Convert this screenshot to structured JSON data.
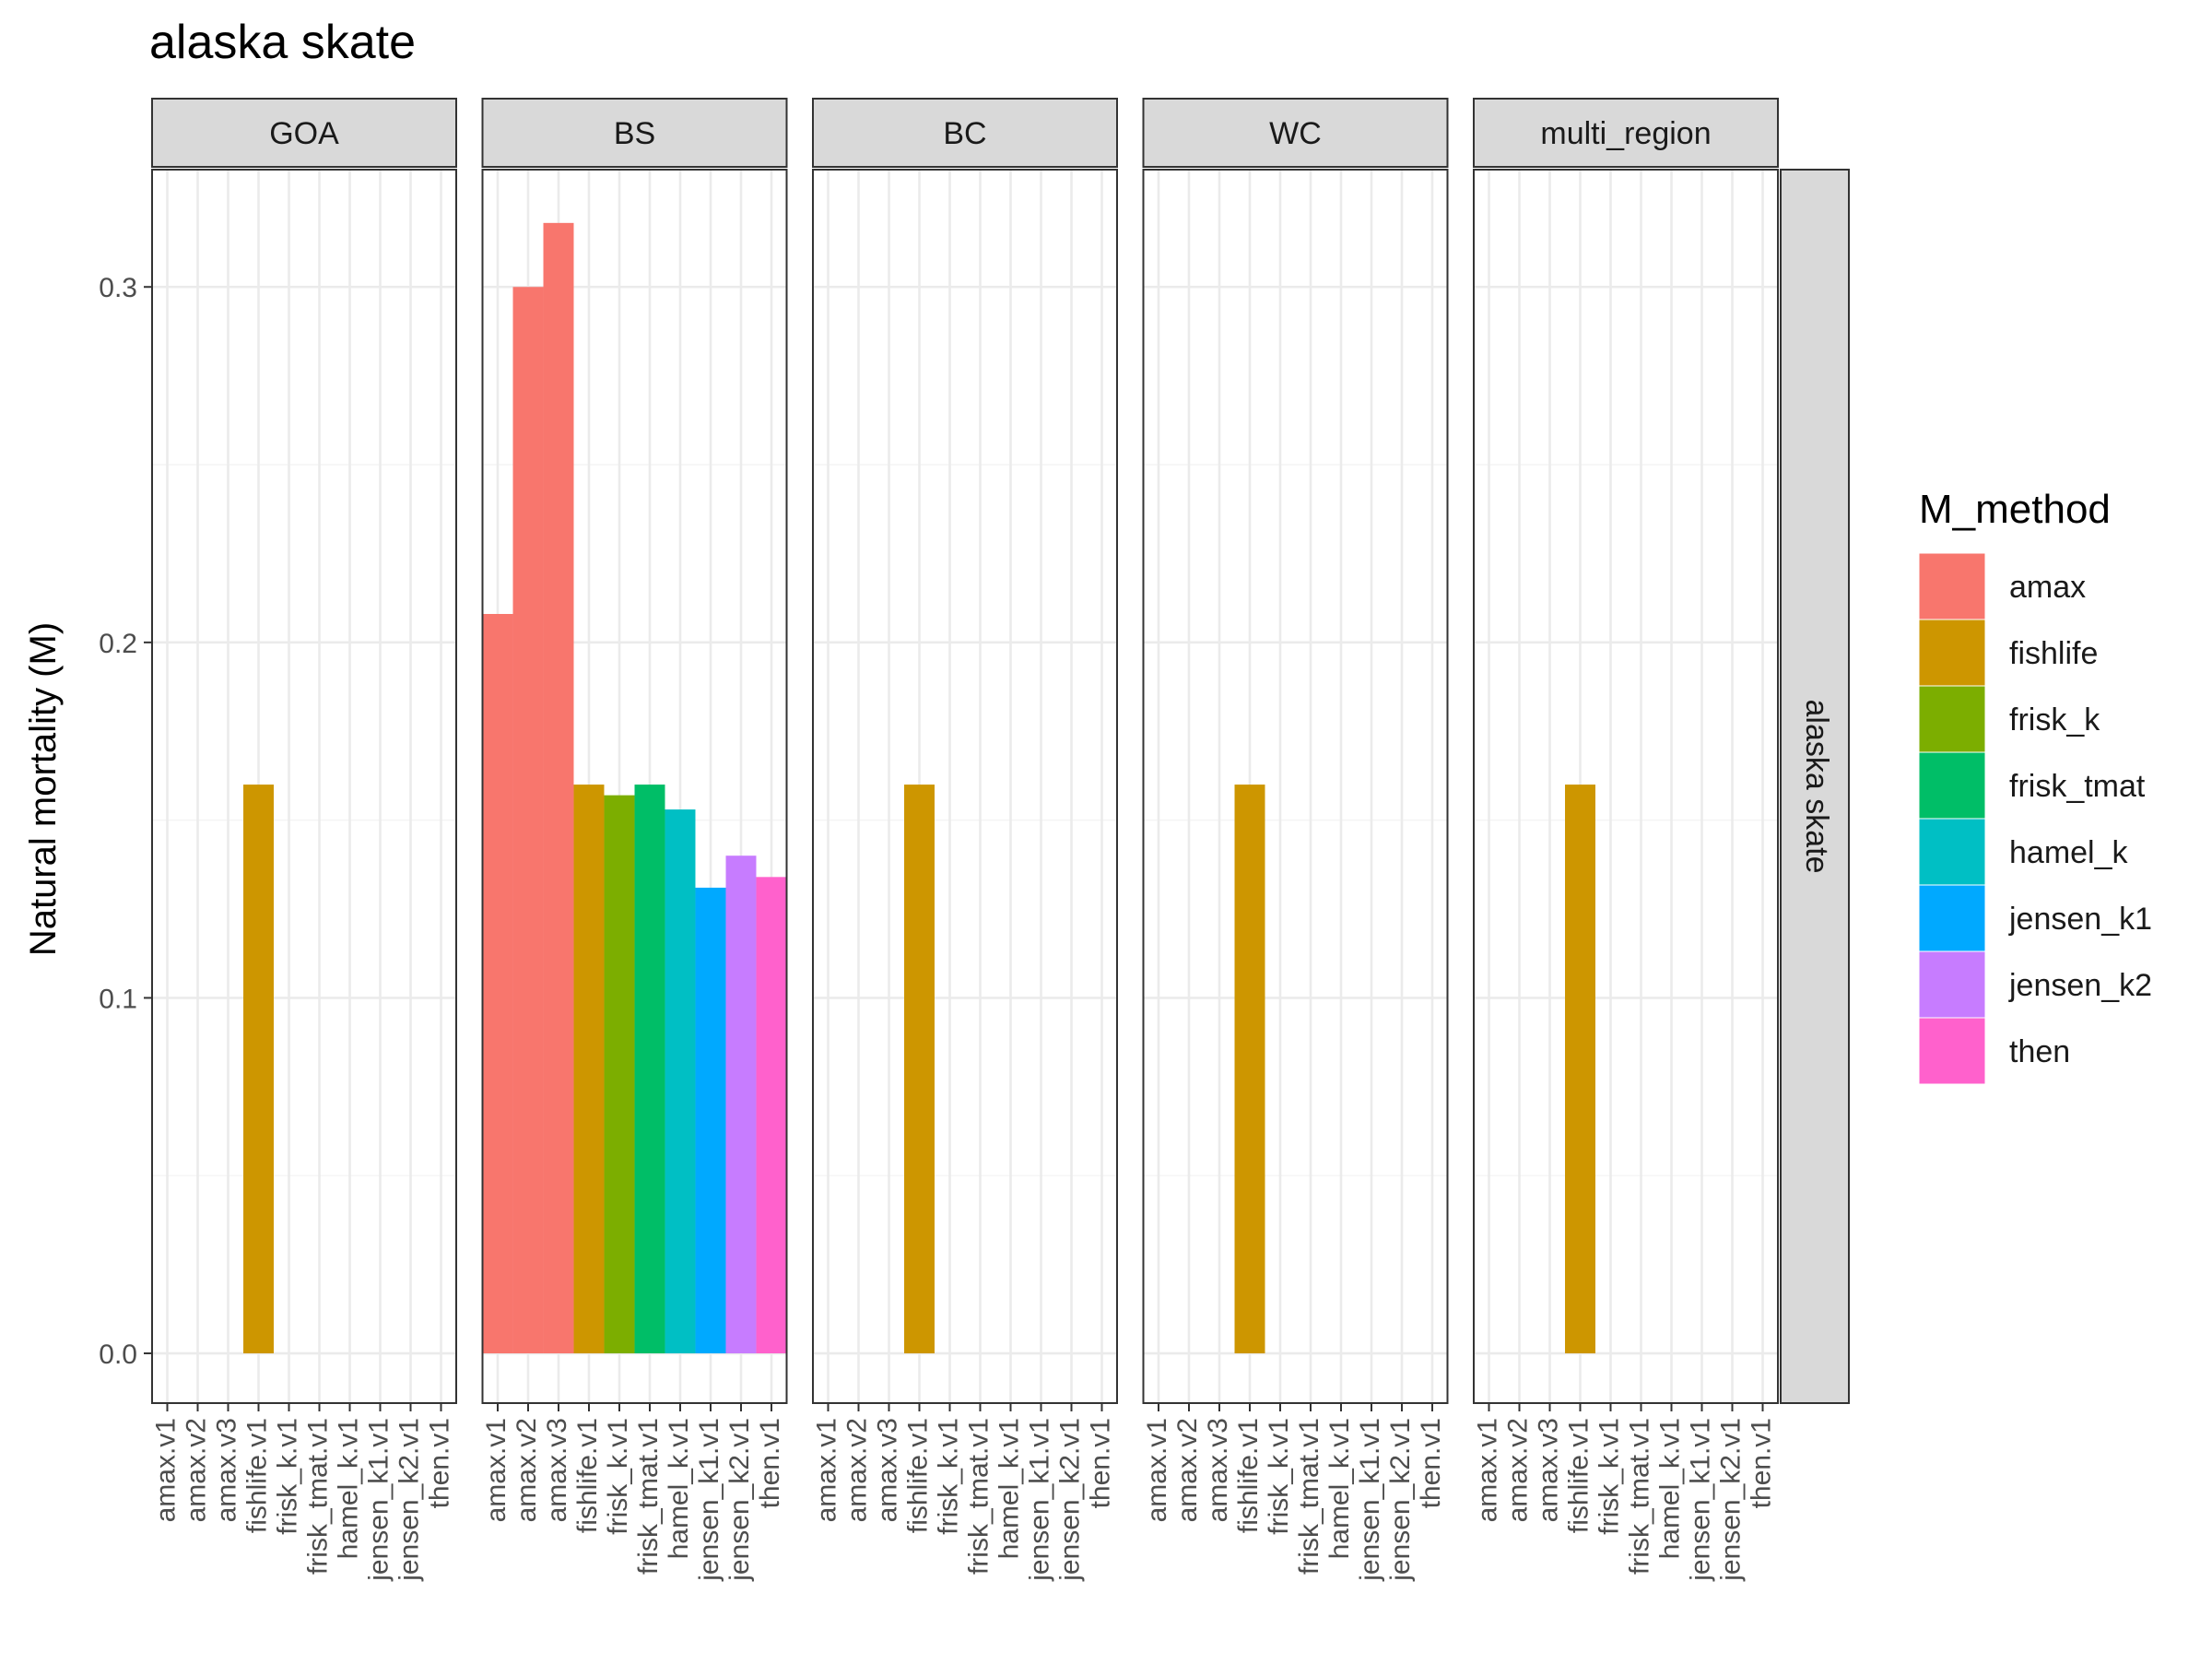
{
  "chart_data": {
    "type": "bar",
    "title": "alaska skate",
    "xlabel": "",
    "ylabel": "Natural mortality (M)",
    "ylim": [
      -0.014,
      0.333
    ],
    "yticks": [
      0.0,
      0.1,
      0.2,
      0.3
    ],
    "ytick_labels": [
      "0.0",
      "0.1",
      "0.2",
      "0.3"
    ],
    "grid": true,
    "facet_row_label": "alaska skate",
    "categories": [
      "amax.v1",
      "amax.v2",
      "amax.v3",
      "fishlife.v1",
      "frisk_k.v1",
      "frisk_tmat.v1",
      "hamel_k.v1",
      "jensen_k1.v1",
      "jensen_k2.v1",
      "then.v1"
    ],
    "legend": {
      "title": "M_method",
      "position": "right",
      "entries": [
        {
          "name": "amax",
          "color": "#F8766D"
        },
        {
          "name": "fishlife",
          "color": "#CD9600"
        },
        {
          "name": "frisk_k",
          "color": "#7CAE00"
        },
        {
          "name": "frisk_tmat",
          "color": "#00BE67"
        },
        {
          "name": "hamel_k",
          "color": "#00BFC4"
        },
        {
          "name": "jensen_k1",
          "color": "#00A9FF"
        },
        {
          "name": "jensen_k2",
          "color": "#C77CFF"
        },
        {
          "name": "then",
          "color": "#FF61CC"
        }
      ]
    },
    "panels": [
      {
        "region": "GOA",
        "bars": [
          {
            "category": "fishlife.v1",
            "method": "fishlife",
            "value": 0.16
          }
        ]
      },
      {
        "region": "BS",
        "bars": [
          {
            "category": "amax.v1",
            "method": "amax",
            "value": 0.208
          },
          {
            "category": "amax.v2",
            "method": "amax",
            "value": 0.3
          },
          {
            "category": "amax.v3",
            "method": "amax",
            "value": 0.318
          },
          {
            "category": "fishlife.v1",
            "method": "fishlife",
            "value": 0.16
          },
          {
            "category": "frisk_k.v1",
            "method": "frisk_k",
            "value": 0.157
          },
          {
            "category": "frisk_tmat.v1",
            "method": "frisk_tmat",
            "value": 0.16
          },
          {
            "category": "hamel_k.v1",
            "method": "hamel_k",
            "value": 0.153
          },
          {
            "category": "jensen_k1.v1",
            "method": "jensen_k1",
            "value": 0.131
          },
          {
            "category": "jensen_k2.v1",
            "method": "jensen_k2",
            "value": 0.14
          },
          {
            "category": "then.v1",
            "method": "then",
            "value": 0.134
          }
        ]
      },
      {
        "region": "BC",
        "bars": [
          {
            "category": "fishlife.v1",
            "method": "fishlife",
            "value": 0.16
          }
        ]
      },
      {
        "region": "WC",
        "bars": [
          {
            "category": "fishlife.v1",
            "method": "fishlife",
            "value": 0.16
          }
        ]
      },
      {
        "region": "multi_region",
        "bars": [
          {
            "category": "fishlife.v1",
            "method": "fishlife",
            "value": 0.16
          }
        ]
      }
    ]
  }
}
